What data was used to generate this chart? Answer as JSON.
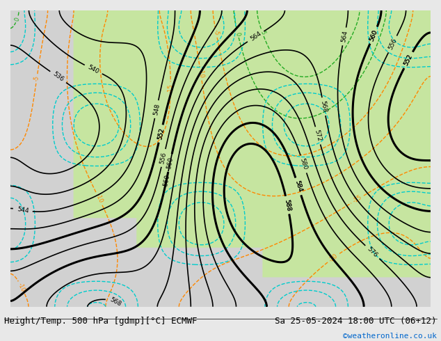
{
  "title_left": "Height/Temp. 500 hPa [gdmp][°C] ECMWF",
  "title_right": "Sa 25-05-2024 18:00 UTC (06+12)",
  "credit": "©weatheronline.co.uk",
  "bg_color": "#f0f0f0",
  "fig_width": 6.34,
  "fig_height": 4.9,
  "dpi": 100,
  "title_fontsize": 9,
  "credit_fontsize": 8,
  "credit_color": "#0066cc",
  "map_bg_green": "#c8e6a0",
  "map_bg_gray": "#d0d0d0",
  "contour_color_z500": "#000000",
  "contour_color_temp_neg": "#ff8800",
  "contour_color_temp_pos": "#00aa00",
  "contour_color_cyan": "#00cccc",
  "z500_levels": [
    536,
    544,
    552,
    560,
    568,
    576,
    584,
    588
  ],
  "bold_levels": [
    552,
    560,
    584,
    588
  ],
  "contour_linewidth": 1.2,
  "bold_linewidth": 2.2
}
